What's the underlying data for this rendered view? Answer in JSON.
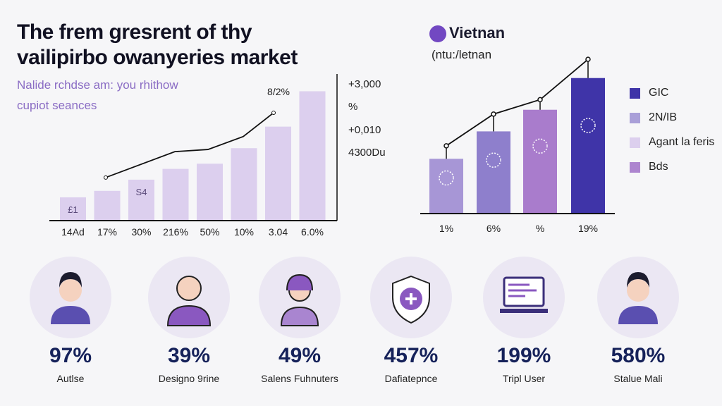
{
  "title": {
    "line1": "The frem gresrent of thy",
    "line2": "vailipirbo owanyeries market"
  },
  "subtitle": {
    "line1": "Nalide rchdse am: you rhithow",
    "line2": "cupiot seances"
  },
  "chart_data": [
    {
      "type": "bar",
      "title": "",
      "categories": [
        "14Ad",
        "17%",
        "30%",
        "216%",
        "50%",
        "10%",
        "3.04",
        "6.0%"
      ],
      "values": [
        540,
        690,
        950,
        1200,
        1320,
        1680,
        2180,
        3000
      ],
      "bar_labels": [
        "£1",
        "",
        "S4",
        "",
        "",
        "",
        "",
        ""
      ],
      "line": {
        "values": [
          1000,
          1600,
          1650,
          1950,
          2500
        ],
        "start_index": 1,
        "end_label": "8/2%"
      },
      "y_tick_labels": [
        "+3,000",
        "%",
        "+0,010",
        "4300Du"
      ],
      "ylim": [
        0,
        3400
      ],
      "color": "#dccfee"
    },
    {
      "type": "bar",
      "title": "Vietnan",
      "subtitle": "(ntu:/letnan",
      "categories": [
        "1%",
        "6%",
        "%",
        "19%"
      ],
      "values": [
        380,
        570,
        720,
        940
      ],
      "line": {
        "values": [
          470,
          690,
          790,
          1070
        ]
      },
      "colors": [
        "#a796d6",
        "#8e7fcc",
        "#a97ccc",
        "#3f34a8"
      ],
      "legend": [
        {
          "label": "GIC",
          "color": "#3f34a8"
        },
        {
          "label": "2N/IB",
          "color": "#a99fd8"
        },
        {
          "label": "Agant la feris",
          "color": "#dccfee"
        },
        {
          "label": "Bds",
          "color": "#ad85cf"
        }
      ],
      "ylim": [
        0,
        1100
      ]
    }
  ],
  "stats": [
    {
      "value": "97%",
      "label": "Autlse",
      "icon": "person-icon"
    },
    {
      "value": "39%",
      "label": "Designo 9rine",
      "icon": "bald-person-icon"
    },
    {
      "value": "49%",
      "label": "Salens Fuhnuters",
      "icon": "headset-person-icon"
    },
    {
      "value": "457%",
      "label": "Dafiatepnce",
      "icon": "shield-plus-icon"
    },
    {
      "value": "199%",
      "label": "Tripl User",
      "icon": "laptop-icon"
    },
    {
      "value": "580%",
      "label": "Stalue Mali",
      "icon": "person-icon"
    }
  ]
}
